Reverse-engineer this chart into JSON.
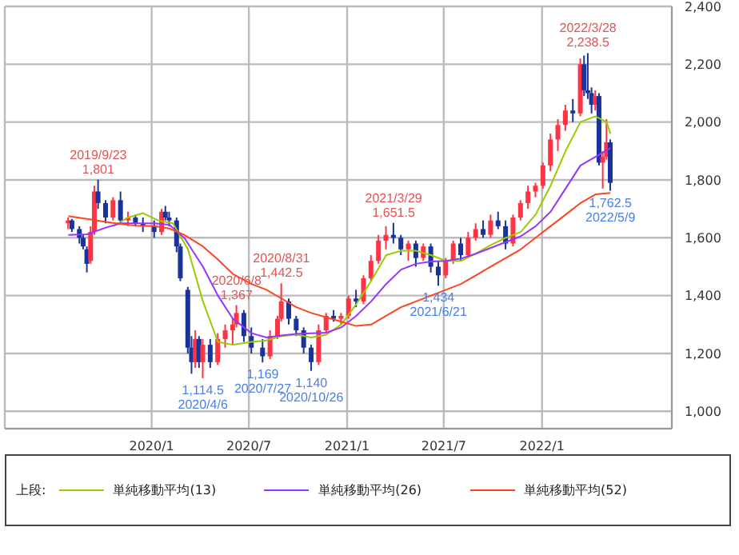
{
  "chart_data": {
    "type": "candlestick",
    "legend_title": "上段:",
    "legend": "bottom",
    "grid": true,
    "xlim": [
      "2019-04-01",
      "2022-09-01"
    ],
    "xticks": [
      {
        "value": "2020-01-01",
        "label": "2020/1"
      },
      {
        "value": "2020-07-01",
        "label": "2020/7"
      },
      {
        "value": "2021-01-01",
        "label": "2021/1"
      },
      {
        "value": "2021-07-01",
        "label": "2021/7"
      },
      {
        "value": "2022-01-01",
        "label": "2022/1"
      }
    ],
    "ylim": [
      940,
      2400
    ],
    "yticks": [
      {
        "value": 1000,
        "label": "1,000"
      },
      {
        "value": 1200,
        "label": "1,200"
      },
      {
        "value": 1400,
        "label": "1,400"
      },
      {
        "value": 1600,
        "label": "1,600"
      },
      {
        "value": 1800,
        "label": "1,800"
      },
      {
        "value": 2000,
        "label": "2,000"
      },
      {
        "value": 2200,
        "label": "2,200"
      },
      {
        "value": 2400,
        "label": "2,400"
      }
    ],
    "x": [
      "2019-07-29",
      "2019-08-05",
      "2019-08-19",
      "2019-08-26",
      "2019-09-02",
      "2019-09-09",
      "2019-09-16",
      "2019-09-23",
      "2019-10-07",
      "2019-10-21",
      "2019-11-04",
      "2019-11-18",
      "2019-12-02",
      "2019-12-16",
      "2020-01-06",
      "2020-01-20",
      "2020-01-27",
      "2020-02-03",
      "2020-02-17",
      "2020-02-24",
      "2020-03-09",
      "2020-03-16",
      "2020-03-23",
      "2020-03-30",
      "2020-04-06",
      "2020-04-20",
      "2020-05-04",
      "2020-05-18",
      "2020-06-01",
      "2020-06-08",
      "2020-06-22",
      "2020-07-06",
      "2020-07-27",
      "2020-08-10",
      "2020-08-24",
      "2020-08-31",
      "2020-09-14",
      "2020-09-28",
      "2020-10-12",
      "2020-10-26",
      "2020-11-09",
      "2020-11-23",
      "2020-12-07",
      "2020-12-21",
      "2021-01-04",
      "2021-01-18",
      "2021-02-01",
      "2021-02-15",
      "2021-03-01",
      "2021-03-15",
      "2021-03-29",
      "2021-04-12",
      "2021-04-26",
      "2021-05-10",
      "2021-05-24",
      "2021-06-07",
      "2021-06-21",
      "2021-07-05",
      "2021-07-19",
      "2021-08-02",
      "2021-08-16",
      "2021-08-30",
      "2021-09-13",
      "2021-09-27",
      "2021-10-11",
      "2021-10-25",
      "2021-11-08",
      "2021-11-22",
      "2021-12-06",
      "2021-12-20",
      "2022-01-03",
      "2022-01-17",
      "2022-01-31",
      "2022-02-14",
      "2022-02-28",
      "2022-03-14",
      "2022-03-21",
      "2022-03-28",
      "2022-04-04",
      "2022-04-11",
      "2022-04-18",
      "2022-04-25",
      "2022-05-02",
      "2022-05-09"
    ],
    "ohlc": [
      [
        1650,
        1670,
        1630,
        1660
      ],
      [
        1660,
        1665,
        1620,
        1630
      ],
      [
        1630,
        1640,
        1580,
        1600
      ],
      [
        1600,
        1610,
        1560,
        1570
      ],
      [
        1560,
        1570,
        1480,
        1510
      ],
      [
        1520,
        1640,
        1510,
        1620
      ],
      [
        1620,
        1780,
        1610,
        1760
      ],
      [
        1760,
        1801,
        1700,
        1720
      ],
      [
        1720,
        1730,
        1650,
        1670
      ],
      [
        1670,
        1740,
        1660,
        1730
      ],
      [
        1730,
        1760,
        1650,
        1660
      ],
      [
        1660,
        1690,
        1640,
        1670
      ],
      [
        1670,
        1680,
        1640,
        1650
      ],
      [
        1650,
        1670,
        1620,
        1640
      ],
      [
        1640,
        1660,
        1600,
        1620
      ],
      [
        1620,
        1700,
        1610,
        1690
      ],
      [
        1690,
        1710,
        1660,
        1670
      ],
      [
        1670,
        1690,
        1640,
        1660
      ],
      [
        1660,
        1670,
        1550,
        1570
      ],
      [
        1570,
        1580,
        1450,
        1460
      ],
      [
        1420,
        1430,
        1200,
        1220
      ],
      [
        1220,
        1260,
        1130,
        1170
      ],
      [
        1170,
        1280,
        1150,
        1250
      ],
      [
        1250,
        1260,
        1150,
        1170
      ],
      [
        1170,
        1250,
        1114.5,
        1230
      ],
      [
        1230,
        1250,
        1150,
        1170
      ],
      [
        1170,
        1270,
        1160,
        1250
      ],
      [
        1250,
        1300,
        1220,
        1280
      ],
      [
        1280,
        1320,
        1230,
        1300
      ],
      [
        1300,
        1367,
        1290,
        1340
      ],
      [
        1340,
        1350,
        1240,
        1260
      ],
      [
        1260,
        1290,
        1200,
        1220
      ],
      [
        1220,
        1250,
        1169,
        1190
      ],
      [
        1190,
        1280,
        1180,
        1260
      ],
      [
        1260,
        1330,
        1250,
        1320
      ],
      [
        1320,
        1442.5,
        1310,
        1380
      ],
      [
        1380,
        1390,
        1300,
        1320
      ],
      [
        1320,
        1330,
        1260,
        1280
      ],
      [
        1280,
        1290,
        1200,
        1220
      ],
      [
        1220,
        1230,
        1140,
        1170
      ],
      [
        1170,
        1300,
        1160,
        1280
      ],
      [
        1280,
        1340,
        1270,
        1330
      ],
      [
        1330,
        1350,
        1310,
        1320
      ],
      [
        1320,
        1340,
        1300,
        1330
      ],
      [
        1330,
        1400,
        1320,
        1390
      ],
      [
        1390,
        1420,
        1360,
        1380
      ],
      [
        1380,
        1470,
        1370,
        1460
      ],
      [
        1460,
        1540,
        1450,
        1520
      ],
      [
        1520,
        1610,
        1510,
        1590
      ],
      [
        1590,
        1640,
        1560,
        1610
      ],
      [
        1610,
        1651.5,
        1580,
        1600
      ],
      [
        1600,
        1610,
        1540,
        1560
      ],
      [
        1560,
        1590,
        1520,
        1580
      ],
      [
        1580,
        1590,
        1500,
        1530
      ],
      [
        1530,
        1580,
        1520,
        1570
      ],
      [
        1570,
        1580,
        1480,
        1500
      ],
      [
        1500,
        1520,
        1434,
        1470
      ],
      [
        1470,
        1530,
        1460,
        1520
      ],
      [
        1520,
        1590,
        1510,
        1580
      ],
      [
        1580,
        1600,
        1520,
        1540
      ],
      [
        1540,
        1620,
        1530,
        1600
      ],
      [
        1600,
        1650,
        1590,
        1630
      ],
      [
        1630,
        1660,
        1600,
        1610
      ],
      [
        1610,
        1680,
        1600,
        1660
      ],
      [
        1660,
        1690,
        1630,
        1640
      ],
      [
        1640,
        1660,
        1560,
        1580
      ],
      [
        1580,
        1680,
        1570,
        1670
      ],
      [
        1670,
        1730,
        1660,
        1720
      ],
      [
        1720,
        1780,
        1700,
        1760
      ],
      [
        1760,
        1790,
        1740,
        1780
      ],
      [
        1780,
        1860,
        1770,
        1850
      ],
      [
        1850,
        1960,
        1830,
        1940
      ],
      [
        1940,
        2010,
        1900,
        1990
      ],
      [
        1990,
        2060,
        1970,
        2040
      ],
      [
        2040,
        2080,
        2000,
        2030
      ],
      [
        2030,
        2220,
        2020,
        2200
      ],
      [
        2200,
        2230,
        2090,
        2110
      ],
      [
        2110,
        2238.5,
        2080,
        2100
      ],
      [
        2100,
        2120,
        2030,
        2060
      ],
      [
        2060,
        2110,
        2040,
        2090
      ],
      [
        2090,
        2100,
        1850,
        1860
      ],
      [
        1860,
        1900,
        1770,
        1880
      ],
      [
        1880,
        2010,
        1870,
        1930
      ],
      [
        1930,
        1940,
        1762.5,
        1790
      ]
    ],
    "colors": [
      "#ff3344",
      "#1a3399",
      "#1a3399",
      "#1a3399",
      "#1a3399",
      "#ff3344",
      "#ff3344",
      "#1a3399",
      "#1a3399",
      "#ff3344",
      "#1a3399",
      "#ff3344",
      "#1a3399",
      "#1a3399",
      "#1a3399",
      "#ff3344",
      "#1a3399",
      "#1a3399",
      "#1a3399",
      "#1a3399",
      "#1a3399",
      "#1a3399",
      "#ff3344",
      "#1a3399",
      "#ff3344",
      "#1a3399",
      "#ff3344",
      "#ff3344",
      "#ff3344",
      "#ff3344",
      "#1a3399",
      "#1a3399",
      "#1a3399",
      "#ff3344",
      "#ff3344",
      "#ff3344",
      "#1a3399",
      "#1a3399",
      "#1a3399",
      "#1a3399",
      "#ff3344",
      "#ff3344",
      "#1a3399",
      "#ff3344",
      "#ff3344",
      "#1a3399",
      "#ff3344",
      "#ff3344",
      "#ff3344",
      "#ff3344",
      "#1a3399",
      "#1a3399",
      "#ff3344",
      "#1a3399",
      "#ff3344",
      "#1a3399",
      "#1a3399",
      "#ff3344",
      "#ff3344",
      "#1a3399",
      "#ff3344",
      "#ff3344",
      "#1a3399",
      "#ff3344",
      "#1a3399",
      "#1a3399",
      "#ff3344",
      "#ff3344",
      "#ff3344",
      "#ff3344",
      "#ff3344",
      "#ff3344",
      "#ff3344",
      "#ff3344",
      "#1a3399",
      "#ff3344",
      "#1a3399",
      "#1a3399",
      "#1a3399",
      "#ff3344",
      "#1a3399",
      "#ff3344",
      "#ff3344",
      "#1a3399"
    ],
    "series": [
      {
        "type": "line",
        "name": "単純移動平均(13)",
        "color": "#99cc00",
        "x": [
          "2019-10-21",
          "2019-11-18",
          "2019-12-16",
          "2020-01-13",
          "2020-02-10",
          "2020-03-09",
          "2020-04-06",
          "2020-05-04",
          "2020-06-01",
          "2020-07-06",
          "2020-08-03",
          "2020-08-31",
          "2020-09-28",
          "2020-10-26",
          "2020-11-23",
          "2020-12-21",
          "2021-01-18",
          "2021-02-15",
          "2021-03-15",
          "2021-04-12",
          "2021-05-10",
          "2021-06-07",
          "2021-07-05",
          "2021-08-02",
          "2021-08-30",
          "2021-09-27",
          "2021-10-25",
          "2021-11-22",
          "2021-12-20",
          "2022-01-17",
          "2022-02-14",
          "2022-03-14",
          "2022-04-11",
          "2022-05-02",
          "2022-05-09"
        ],
        "values": [
          1640,
          1670,
          1685,
          1660,
          1650,
          1560,
          1380,
          1240,
          1230,
          1240,
          1245,
          1260,
          1265,
          1255,
          1265,
          1300,
          1370,
          1450,
          1540,
          1555,
          1555,
          1540,
          1520,
          1520,
          1545,
          1575,
          1600,
          1620,
          1680,
          1780,
          1900,
          2000,
          2020,
          2000,
          1960
        ]
      },
      {
        "type": "line",
        "name": "単純移動平均(26)",
        "color": "#9933ff",
        "x": [
          "2019-07-29",
          "2019-09-02",
          "2019-10-07",
          "2019-11-04",
          "2019-12-02",
          "2020-01-06",
          "2020-02-03",
          "2020-03-02",
          "2020-04-06",
          "2020-05-04",
          "2020-06-01",
          "2020-07-06",
          "2020-08-03",
          "2020-08-31",
          "2020-09-28",
          "2020-10-26",
          "2020-11-23",
          "2020-12-21",
          "2021-01-18",
          "2021-02-15",
          "2021-03-15",
          "2021-04-12",
          "2021-05-10",
          "2021-06-07",
          "2021-07-05",
          "2021-08-02",
          "2021-08-30",
          "2021-09-27",
          "2021-10-25",
          "2021-11-22",
          "2021-12-20",
          "2022-01-17",
          "2022-02-14",
          "2022-03-14",
          "2022-04-11",
          "2022-05-09"
        ],
        "values": [
          1610,
          1612,
          1635,
          1650,
          1650,
          1650,
          1645,
          1600,
          1500,
          1400,
          1320,
          1270,
          1255,
          1262,
          1268,
          1270,
          1272,
          1290,
          1330,
          1380,
          1440,
          1490,
          1510,
          1518,
          1520,
          1528,
          1545,
          1565,
          1585,
          1605,
          1640,
          1690,
          1770,
          1850,
          1880,
          1910
        ]
      },
      {
        "type": "line",
        "name": "単純移動平均(52)",
        "color": "#ff4422",
        "x": [
          "2019-07-29",
          "2019-09-02",
          "2019-10-07",
          "2019-11-04",
          "2019-12-02",
          "2020-01-06",
          "2020-02-03",
          "2020-03-02",
          "2020-04-06",
          "2020-05-04",
          "2020-06-01",
          "2020-07-06",
          "2020-08-03",
          "2020-08-31",
          "2020-09-28",
          "2020-10-26",
          "2020-11-23",
          "2020-12-21",
          "2021-01-18",
          "2021-02-15",
          "2021-03-15",
          "2021-04-12",
          "2021-05-10",
          "2021-06-07",
          "2021-07-05",
          "2021-08-02",
          "2021-08-30",
          "2021-09-27",
          "2021-10-25",
          "2021-11-22",
          "2021-12-20",
          "2022-01-17",
          "2022-02-14",
          "2022-03-14",
          "2022-04-11",
          "2022-05-09"
        ],
        "values": [
          1675,
          1665,
          1655,
          1648,
          1642,
          1640,
          1632,
          1610,
          1570,
          1525,
          1475,
          1440,
          1420,
          1390,
          1360,
          1340,
          1325,
          1310,
          1295,
          1300,
          1330,
          1360,
          1380,
          1400,
          1420,
          1440,
          1470,
          1500,
          1530,
          1560,
          1600,
          1640,
          1680,
          1720,
          1750,
          1755
        ]
      }
    ],
    "annotations": [
      {
        "text": "2019/9/23\n1,801",
        "x": "2019-09-23",
        "y": 1801
      },
      {
        "text": "1,114.5\n2020/4/6",
        "x": "2020-04-06",
        "y": 1114.5
      },
      {
        "text": "2020/6/8\n1,367",
        "x": "2020-06-08",
        "y": 1367
      },
      {
        "text": "1,169\n2020/7/27",
        "x": "2020-07-27",
        "y": 1169
      },
      {
        "text": "2020/8/31\n1,442.5",
        "x": "2020-08-31",
        "y": 1442.5
      },
      {
        "text": "1,140\n2020/10/26",
        "x": "2020-10-26",
        "y": 1140
      },
      {
        "text": "2021/3/29\n1,651.5",
        "x": "2021-03-29",
        "y": 1651.5
      },
      {
        "text": "1,434\n2021/6/21",
        "x": "2021-06-21",
        "y": 1434
      },
      {
        "text": "2022/3/28\n2,238.5",
        "x": "2022-03-28",
        "y": 2238.5
      },
      {
        "text": "1,762.5\n2022/5/9",
        "x": "2022-05-09",
        "y": 1762.5
      }
    ]
  }
}
